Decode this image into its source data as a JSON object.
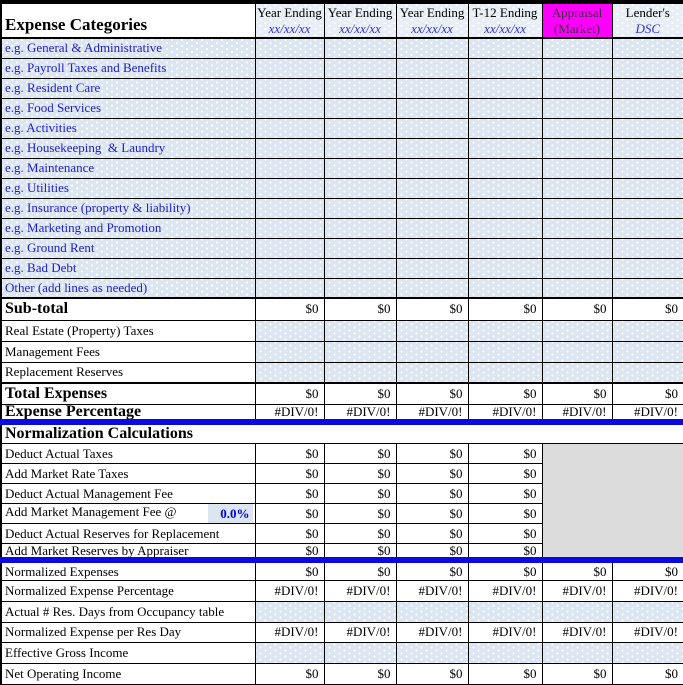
{
  "colors": {
    "cell_blue": "#dce6f1",
    "header_tint": "#e8eef6",
    "magenta": "#ff00ff",
    "gray_block": "#dcdcdc",
    "divider_blue": "#0a0ae0",
    "label_blue": "#1c1ccd",
    "date_blue": "#2d2dde",
    "rate_blue": "#0000e6",
    "grid": "#000000"
  },
  "table": {
    "title": "Expense Categories",
    "columns": [
      {
        "title": "Year Ending",
        "sub": "xx/xx/xx",
        "variant": "tint"
      },
      {
        "title": "Year Ending",
        "sub": "xx/xx/xx",
        "variant": "tint"
      },
      {
        "title": "Year Ending",
        "sub": "xx/xx/xx",
        "variant": "tint"
      },
      {
        "title": "T-12 Ending",
        "sub": "xx/xx/xx",
        "variant": "tint"
      },
      {
        "title": "Appraisal",
        "sub": "(Market)",
        "variant": "magenta"
      },
      {
        "title": "Lender's",
        "sub": "DSC",
        "variant": "tint"
      }
    ],
    "rows": [
      {
        "kind": "category",
        "label": "e.g. General & Administrative",
        "values": [
          "",
          "",
          "",
          "",
          "",
          ""
        ]
      },
      {
        "kind": "category",
        "label": "e.g. Payroll Taxes and Benefits",
        "values": [
          "",
          "",
          "",
          "",
          "",
          ""
        ]
      },
      {
        "kind": "category",
        "label": "e.g. Resident Care",
        "values": [
          "",
          "",
          "",
          "",
          "",
          ""
        ]
      },
      {
        "kind": "category",
        "label": "e.g. Food Services",
        "values": [
          "",
          "",
          "",
          "",
          "",
          ""
        ]
      },
      {
        "kind": "category",
        "label": "e.g. Activities",
        "values": [
          "",
          "",
          "",
          "",
          "",
          ""
        ]
      },
      {
        "kind": "category",
        "label": "e.g. Housekeeping  & Laundry",
        "values": [
          "",
          "",
          "",
          "",
          "",
          ""
        ]
      },
      {
        "kind": "category",
        "label": "e.g. Maintenance",
        "values": [
          "",
          "",
          "",
          "",
          "",
          ""
        ]
      },
      {
        "kind": "category",
        "label": "e.g. Utilities",
        "values": [
          "",
          "",
          "",
          "",
          "",
          ""
        ]
      },
      {
        "kind": "category",
        "label": "e.g. Insurance (property & liability)",
        "values": [
          "",
          "",
          "",
          "",
          "",
          ""
        ]
      },
      {
        "kind": "category",
        "label": "e.g. Marketing and Promotion",
        "values": [
          "",
          "",
          "",
          "",
          "",
          ""
        ]
      },
      {
        "kind": "category",
        "label": "e.g. Ground Rent",
        "values": [
          "",
          "",
          "",
          "",
          "",
          ""
        ]
      },
      {
        "kind": "category",
        "label": "e.g. Bad Debt",
        "values": [
          "",
          "",
          "",
          "",
          "",
          ""
        ]
      },
      {
        "kind": "category",
        "label": "Other (add lines as needed)",
        "values": [
          "",
          "",
          "",
          "",
          "",
          ""
        ]
      },
      {
        "kind": "subtotal",
        "label": "Sub-total",
        "values": [
          "$0",
          "$0",
          "$0",
          "$0",
          "$0",
          "$0"
        ]
      },
      {
        "kind": "input",
        "label": "Real Estate (Property) Taxes",
        "values": [
          "",
          "",
          "",
          "",
          "",
          ""
        ]
      },
      {
        "kind": "input",
        "label": "Management Fees",
        "values": [
          "",
          "",
          "",
          "",
          "",
          ""
        ]
      },
      {
        "kind": "input",
        "label": "Replacement Reserves",
        "values": [
          "",
          "",
          "",
          "",
          "",
          ""
        ]
      },
      {
        "kind": "total",
        "label": "Total Expenses",
        "values": [
          "$0",
          "$0",
          "$0",
          "$0",
          "$0",
          "$0"
        ]
      },
      {
        "kind": "expense-pct",
        "label": "Expense Percentage",
        "values": [
          "#DIV/0!",
          "#DIV/0!",
          "#DIV/0!",
          "#DIV/0!",
          "#DIV/0!",
          "#DIV/0!"
        ]
      },
      {
        "kind": "section",
        "label": "Normalization Calculations"
      },
      {
        "kind": "norm",
        "label": "Deduct Actual Taxes",
        "values": [
          "$0",
          "$0",
          "$0",
          "$0"
        ]
      },
      {
        "kind": "norm",
        "label": "Add Market Rate Taxes",
        "values": [
          "$0",
          "$0",
          "$0",
          "$0"
        ]
      },
      {
        "kind": "norm",
        "label": "Deduct Actual Management Fee",
        "values": [
          "$0",
          "$0",
          "$0",
          "$0"
        ]
      },
      {
        "kind": "norm-rate",
        "label": "Add Market Management Fee @",
        "rate": "0.0%",
        "values": [
          "$0",
          "$0",
          "$0",
          "$0"
        ]
      },
      {
        "kind": "norm",
        "label": "Deduct Actual Reserves for Replacement",
        "values": [
          "$0",
          "$0",
          "$0",
          "$0"
        ]
      },
      {
        "kind": "norm-end",
        "label": "Add Market Reserves by Appraiser",
        "values": [
          "$0",
          "$0",
          "$0",
          "$0"
        ]
      },
      {
        "kind": "value-row",
        "label": "Normalized Expenses",
        "values": [
          "$0",
          "$0",
          "$0",
          "$0",
          "$0",
          "$0"
        ]
      },
      {
        "kind": "value-row",
        "label": "Normalized Expense Percentage",
        "values": [
          "#DIV/0!",
          "#DIV/0!",
          "#DIV/0!",
          "#DIV/0!",
          "#DIV/0!",
          "#DIV/0!"
        ]
      },
      {
        "kind": "input",
        "label": "Actual # Res. Days from Occupancy table",
        "values": [
          "",
          "",
          "",
          "",
          "",
          ""
        ]
      },
      {
        "kind": "value-row",
        "label": "Normalized Expense per Res Day",
        "values": [
          "#DIV/0!",
          "#DIV/0!",
          "#DIV/0!",
          "#DIV/0!",
          "#DIV/0!",
          "#DIV/0!"
        ]
      },
      {
        "kind": "input",
        "label": "Effective Gross Income",
        "values": [
          "",
          "",
          "",
          "",
          "",
          ""
        ]
      },
      {
        "kind": "value-row",
        "label": "Net Operating Income",
        "values": [
          "$0",
          "$0",
          "$0",
          "$0",
          "$0",
          "$0"
        ]
      }
    ]
  }
}
